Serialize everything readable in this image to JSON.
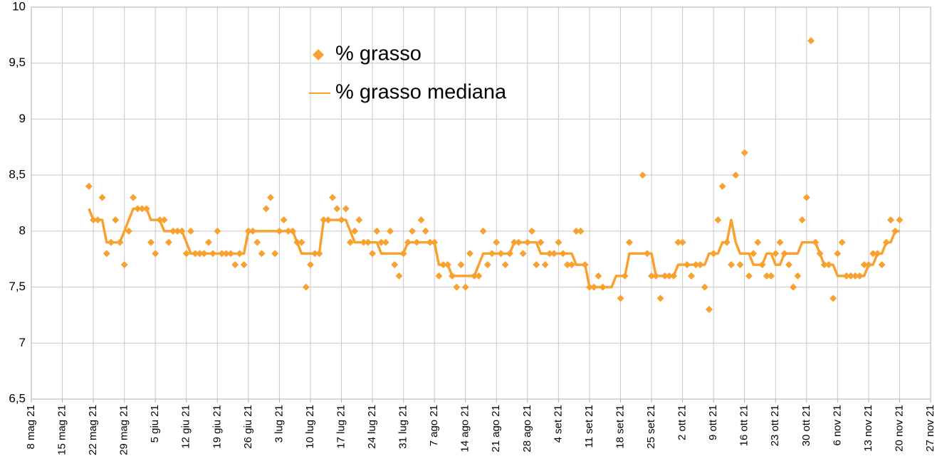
{
  "chart_data": {
    "type": "scatter",
    "x": [
      "2021-05-21",
      "2021-05-22",
      "2021-05-23",
      "2021-05-24",
      "2021-05-25",
      "2021-05-26",
      "2021-05-27",
      "2021-05-28",
      "2021-05-29",
      "2021-05-30",
      "2021-05-31",
      "2021-06-01",
      "2021-06-02",
      "2021-06-03",
      "2021-06-04",
      "2021-06-05",
      "2021-06-06",
      "2021-06-07",
      "2021-06-08",
      "2021-06-09",
      "2021-06-10",
      "2021-06-11",
      "2021-06-12",
      "2021-06-13",
      "2021-06-14",
      "2021-06-15",
      "2021-06-16",
      "2021-06-17",
      "2021-06-18",
      "2021-06-19",
      "2021-06-20",
      "2021-06-21",
      "2021-06-22",
      "2021-06-23",
      "2021-06-24",
      "2021-06-25",
      "2021-06-26",
      "2021-06-27",
      "2021-06-28",
      "2021-06-29",
      "2021-06-30",
      "2021-07-01",
      "2021-07-02",
      "2021-07-03",
      "2021-07-04",
      "2021-07-05",
      "2021-07-06",
      "2021-07-07",
      "2021-07-08",
      "2021-07-09",
      "2021-07-10",
      "2021-07-11",
      "2021-07-12",
      "2021-07-13",
      "2021-07-14",
      "2021-07-15",
      "2021-07-16",
      "2021-07-17",
      "2021-07-18",
      "2021-07-19",
      "2021-07-20",
      "2021-07-21",
      "2021-07-22",
      "2021-07-23",
      "2021-07-24",
      "2021-07-25",
      "2021-07-26",
      "2021-07-27",
      "2021-07-28",
      "2021-07-29",
      "2021-07-30",
      "2021-07-31",
      "2021-08-01",
      "2021-08-02",
      "2021-08-03",
      "2021-08-04",
      "2021-08-05",
      "2021-08-06",
      "2021-08-07",
      "2021-08-08",
      "2021-08-09",
      "2021-08-10",
      "2021-08-11",
      "2021-08-12",
      "2021-08-13",
      "2021-08-14",
      "2021-08-15",
      "2021-08-16",
      "2021-08-17",
      "2021-08-18",
      "2021-08-19",
      "2021-08-20",
      "2021-08-21",
      "2021-08-22",
      "2021-08-23",
      "2021-08-24",
      "2021-08-25",
      "2021-08-26",
      "2021-08-27",
      "2021-08-28",
      "2021-08-29",
      "2021-08-30",
      "2021-08-31",
      "2021-09-01",
      "2021-09-02",
      "2021-09-03",
      "2021-09-04",
      "2021-09-05",
      "2021-09-06",
      "2021-09-07",
      "2021-09-08",
      "2021-09-09",
      "2021-09-10",
      "2021-09-11",
      "2021-09-12",
      "2021-09-13",
      "2021-09-14",
      "2021-09-15",
      "2021-09-16",
      "2021-09-17",
      "2021-09-18",
      "2021-09-19",
      "2021-09-20",
      "2021-09-21",
      "2021-09-22",
      "2021-09-23",
      "2021-09-24",
      "2021-09-25",
      "2021-09-26",
      "2021-09-27",
      "2021-09-28",
      "2021-09-29",
      "2021-09-30",
      "2021-10-01",
      "2021-10-02",
      "2021-10-03",
      "2021-10-04",
      "2021-10-05",
      "2021-10-06",
      "2021-10-07",
      "2021-10-08",
      "2021-10-09",
      "2021-10-10",
      "2021-10-11",
      "2021-10-12",
      "2021-10-13",
      "2021-10-14",
      "2021-10-15",
      "2021-10-16",
      "2021-10-17",
      "2021-10-18",
      "2021-10-19",
      "2021-10-20",
      "2021-10-21",
      "2021-10-22",
      "2021-10-23",
      "2021-10-24",
      "2021-10-25",
      "2021-10-26",
      "2021-10-27",
      "2021-10-28",
      "2021-10-29",
      "2021-10-30",
      "2021-10-31",
      "2021-11-01",
      "2021-11-02",
      "2021-11-03",
      "2021-11-04",
      "2021-11-05",
      "2021-11-06",
      "2021-11-07",
      "2021-11-08",
      "2021-11-09",
      "2021-11-10",
      "2021-11-11",
      "2021-11-12",
      "2021-11-13",
      "2021-11-14",
      "2021-11-15",
      "2021-11-16",
      "2021-11-17",
      "2021-11-18",
      "2021-11-19",
      "2021-11-20"
    ],
    "series": [
      {
        "name": "% grasso",
        "type": "scatter",
        "color": "#f9a12e",
        "values": [
          8.4,
          8.1,
          8.1,
          8.3,
          7.8,
          7.9,
          8.1,
          7.9,
          7.7,
          8.0,
          8.3,
          8.2,
          8.2,
          8.2,
          7.9,
          7.8,
          8.1,
          8.1,
          7.9,
          8.0,
          8.0,
          8.0,
          7.8,
          8.0,
          7.8,
          7.8,
          7.8,
          7.9,
          7.8,
          8.0,
          7.8,
          7.8,
          7.8,
          7.7,
          7.8,
          7.7,
          8.0,
          8.0,
          7.9,
          7.8,
          8.2,
          8.3,
          7.8,
          8.0,
          8.1,
          8.0,
          8.0,
          7.9,
          7.9,
          7.5,
          7.7,
          7.8,
          7.8,
          8.1,
          8.1,
          8.3,
          8.2,
          8.1,
          8.2,
          7.9,
          8.0,
          8.1,
          7.9,
          7.9,
          7.8,
          8.0,
          7.9,
          7.9,
          8.0,
          7.7,
          7.6,
          7.8,
          7.9,
          8.0,
          7.9,
          8.1,
          8.0,
          7.9,
          7.9,
          7.6,
          7.7,
          7.7,
          7.6,
          7.5,
          7.7,
          7.5,
          7.8,
          7.6,
          7.6,
          8.0,
          7.7,
          7.8,
          7.9,
          7.8,
          7.7,
          7.8,
          7.9,
          7.9,
          7.8,
          7.9,
          8.0,
          7.7,
          7.9,
          7.7,
          7.8,
          7.8,
          7.9,
          7.8,
          7.7,
          7.7,
          8.0,
          8.0,
          7.7,
          7.5,
          7.5,
          7.6,
          7.5,
          null,
          null,
          null,
          7.4,
          7.6,
          7.9,
          null,
          null,
          8.5,
          7.8,
          7.6,
          7.6,
          7.4,
          7.6,
          7.6,
          7.6,
          7.9,
          7.9,
          7.7,
          7.6,
          7.7,
          7.7,
          7.5,
          7.3,
          7.8,
          8.1,
          8.4,
          7.9,
          7.7,
          8.5,
          7.7,
          8.7,
          7.6,
          7.8,
          7.9,
          7.7,
          7.6,
          7.6,
          7.8,
          7.9,
          7.8,
          7.7,
          7.5,
          7.6,
          8.1,
          8.3,
          9.7,
          7.9,
          7.8,
          7.7,
          7.7,
          7.4,
          7.8,
          7.9,
          7.6,
          7.6,
          7.6,
          7.6,
          7.7,
          7.7,
          7.8,
          7.8,
          7.7,
          7.9,
          8.1,
          8.0,
          8.1
        ]
      },
      {
        "name": "% grasso mediana",
        "type": "line",
        "color": "#f9a12e",
        "values": [
          8.2,
          8.1,
          8.1,
          8.1,
          7.9,
          7.9,
          7.9,
          7.9,
          8.0,
          8.1,
          8.2,
          8.2,
          8.2,
          8.2,
          8.1,
          8.1,
          8.1,
          8.0,
          8.0,
          8.0,
          8.0,
          8.0,
          7.9,
          7.8,
          7.8,
          7.8,
          7.8,
          7.8,
          7.8,
          7.8,
          7.8,
          7.8,
          7.8,
          7.8,
          7.8,
          7.8,
          8.0,
          8.0,
          8.0,
          8.0,
          8.0,
          8.0,
          8.0,
          8.0,
          8.0,
          8.0,
          8.0,
          7.9,
          7.8,
          7.8,
          7.8,
          7.8,
          7.8,
          8.1,
          8.1,
          8.1,
          8.1,
          8.1,
          8.1,
          8.0,
          7.9,
          7.9,
          7.9,
          7.9,
          7.9,
          7.9,
          7.8,
          7.8,
          7.8,
          7.8,
          7.8,
          7.8,
          7.9,
          7.9,
          7.9,
          7.9,
          7.9,
          7.9,
          7.9,
          7.7,
          7.7,
          7.7,
          7.6,
          7.6,
          7.6,
          7.6,
          7.6,
          7.6,
          7.7,
          7.8,
          7.8,
          7.8,
          7.8,
          7.8,
          7.8,
          7.8,
          7.9,
          7.9,
          7.9,
          7.9,
          7.9,
          7.9,
          7.8,
          7.8,
          7.8,
          7.8,
          7.8,
          7.8,
          7.8,
          7.8,
          7.7,
          7.7,
          7.7,
          7.5,
          7.5,
          7.5,
          7.5,
          7.5,
          7.5,
          7.6,
          7.6,
          7.6,
          7.8,
          7.8,
          7.8,
          7.8,
          7.8,
          7.8,
          7.6,
          7.6,
          7.6,
          7.6,
          7.6,
          7.7,
          7.7,
          7.7,
          7.7,
          7.7,
          7.7,
          7.7,
          7.8,
          7.8,
          7.8,
          7.9,
          7.9,
          8.1,
          7.9,
          7.8,
          7.8,
          7.8,
          7.7,
          7.7,
          7.7,
          7.8,
          7.8,
          7.7,
          7.7,
          7.8,
          7.8,
          7.8,
          7.8,
          7.9,
          7.9,
          7.9,
          7.9,
          7.8,
          7.7,
          7.7,
          7.7,
          7.6,
          7.6,
          7.6,
          7.6,
          7.6,
          7.6,
          7.6,
          7.7,
          7.7,
          7.8,
          7.8,
          7.9,
          7.9,
          8.0,
          8.0
        ]
      }
    ],
    "xlim": [
      "2021-05-08",
      "2021-11-27"
    ],
    "xticks": [
      {
        "value": "2021-05-08",
        "label": "8 mag 21"
      },
      {
        "value": "2021-05-15",
        "label": "15 mag 21"
      },
      {
        "value": "2021-05-22",
        "label": "22 mag 21"
      },
      {
        "value": "2021-05-29",
        "label": "29 mag 21"
      },
      {
        "value": "2021-06-05",
        "label": "5 giu 21"
      },
      {
        "value": "2021-06-12",
        "label": "12 giu 21"
      },
      {
        "value": "2021-06-19",
        "label": "19 giu 21"
      },
      {
        "value": "2021-06-26",
        "label": "26 giu 21"
      },
      {
        "value": "2021-07-03",
        "label": "3 lug 21"
      },
      {
        "value": "2021-07-10",
        "label": "10 lug 21"
      },
      {
        "value": "2021-07-17",
        "label": "17 lug 21"
      },
      {
        "value": "2021-07-24",
        "label": "24 lug 21"
      },
      {
        "value": "2021-07-31",
        "label": "31 lug 21"
      },
      {
        "value": "2021-08-07",
        "label": "7 ago 21"
      },
      {
        "value": "2021-08-14",
        "label": "14 ago 21"
      },
      {
        "value": "2021-08-21",
        "label": "21 ago 21"
      },
      {
        "value": "2021-08-28",
        "label": "28 ago 21"
      },
      {
        "value": "2021-09-04",
        "label": "4 set 21"
      },
      {
        "value": "2021-09-11",
        "label": "11 set 21"
      },
      {
        "value": "2021-09-18",
        "label": "18 set 21"
      },
      {
        "value": "2021-09-25",
        "label": "25 set 21"
      },
      {
        "value": "2021-10-02",
        "label": "2 ott 21"
      },
      {
        "value": "2021-10-09",
        "label": "9 ott 21"
      },
      {
        "value": "2021-10-16",
        "label": "16 ott 21"
      },
      {
        "value": "2021-10-23",
        "label": "23 ott 21"
      },
      {
        "value": "2021-10-30",
        "label": "30 ott 21"
      },
      {
        "value": "2021-11-06",
        "label": "6 nov 21"
      },
      {
        "value": "2021-11-13",
        "label": "13 nov 21"
      },
      {
        "value": "2021-11-20",
        "label": "20 nov 21"
      },
      {
        "value": "2021-11-27",
        "label": "27 nov 21"
      }
    ],
    "ylim": [
      6.5,
      10
    ],
    "yticks": [
      {
        "value": 6.5,
        "label": "6,5"
      },
      7,
      {
        "value": 7.5,
        "label": "7,5"
      },
      8,
      {
        "value": 8.5,
        "label": "8,5"
      },
      9,
      {
        "value": 9.5,
        "label": "9,5"
      },
      10
    ],
    "grid": true,
    "legend": "upper center"
  }
}
